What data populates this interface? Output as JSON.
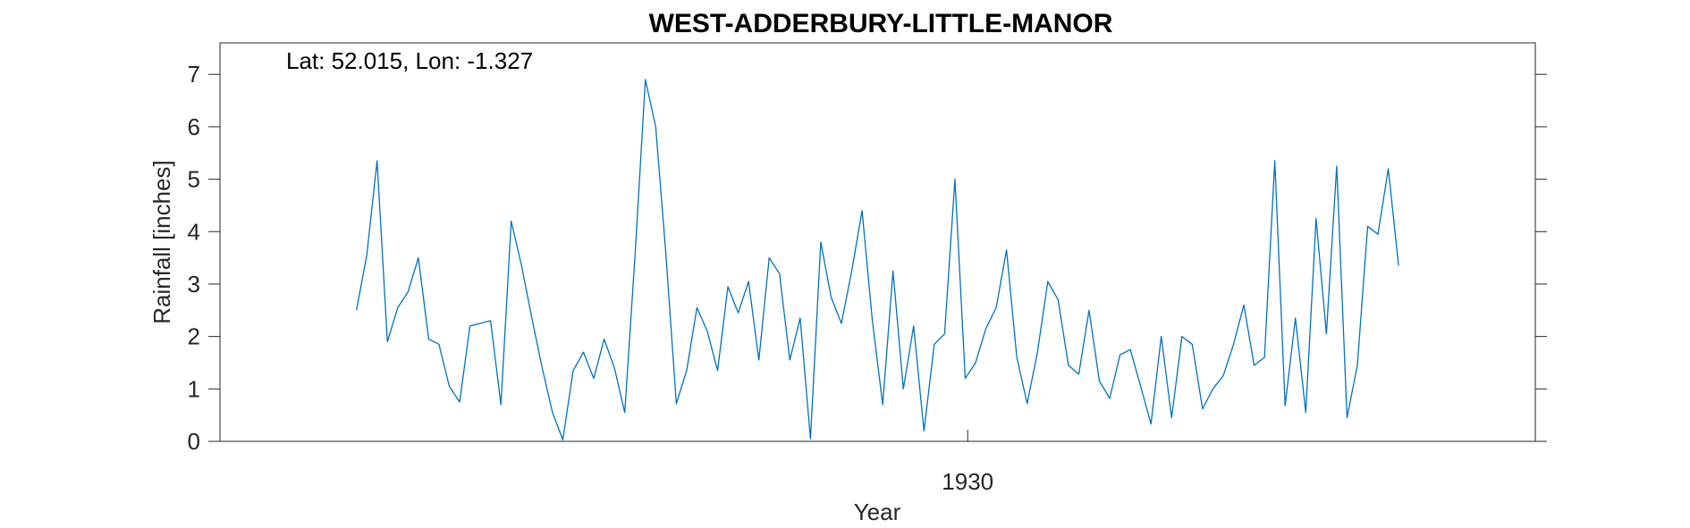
{
  "chart_data": {
    "type": "line",
    "title": "WEST-ADDERBURY-LITTLE-MANOR",
    "annotation": "Lat: 52.015, Lon: -1.327",
    "xlabel": "Year",
    "ylabel": "Rainfall [inches]",
    "xlim": [
      1917.92,
      1939.17
    ],
    "ylim": [
      0,
      7.6
    ],
    "x_ticks": [
      {
        "value": 1930,
        "label": "1930"
      }
    ],
    "y_ticks": [
      {
        "value": 0,
        "label": "0"
      },
      {
        "value": 1,
        "label": "1"
      },
      {
        "value": 2,
        "label": "2"
      },
      {
        "value": 3,
        "label": "3"
      },
      {
        "value": 4,
        "label": "4"
      },
      {
        "value": 5,
        "label": "5"
      },
      {
        "value": 6,
        "label": "6"
      },
      {
        "value": 7,
        "label": "7"
      }
    ],
    "grid": false,
    "colors": {
      "series": "#0072BD",
      "axes": "#262626"
    },
    "series": [
      {
        "x_start": 1920.125,
        "x_step": 0.1667,
        "values": [
          2.5,
          3.55,
          5.35,
          1.9,
          2.55,
          2.85,
          3.5,
          1.95,
          1.85,
          1.05,
          0.75,
          2.2,
          2.25,
          2.3,
          0.7,
          4.2,
          3.35,
          2.35,
          1.4,
          0.55,
          0.03,
          1.35,
          1.7,
          1.2,
          1.95,
          1.4,
          0.55,
          3.55,
          6.9,
          6.0,
          3.55,
          0.72,
          1.35,
          2.55,
          2.1,
          1.35,
          2.95,
          2.45,
          3.05,
          1.55,
          3.5,
          3.2,
          1.55,
          2.35,
          0.05,
          3.8,
          2.75,
          2.25,
          3.25,
          4.4,
          2.3,
          0.7,
          3.25,
          1.0,
          2.2,
          0.2,
          1.85,
          2.05,
          5.0,
          1.2,
          1.5,
          2.15,
          2.55,
          3.65,
          1.6,
          0.72,
          1.7,
          3.05,
          2.7,
          1.45,
          1.28,
          2.5,
          1.15,
          0.82,
          1.65,
          1.75,
          1.05,
          0.33,
          2.0,
          0.45,
          2.0,
          1.85,
          0.62,
          1.0,
          1.25,
          1.85,
          2.6,
          1.45,
          1.6,
          5.35,
          0.68,
          2.35,
          0.55,
          4.25,
          2.05,
          5.25,
          0.45,
          1.45,
          4.1,
          3.95,
          5.2,
          3.35
        ]
      }
    ]
  }
}
